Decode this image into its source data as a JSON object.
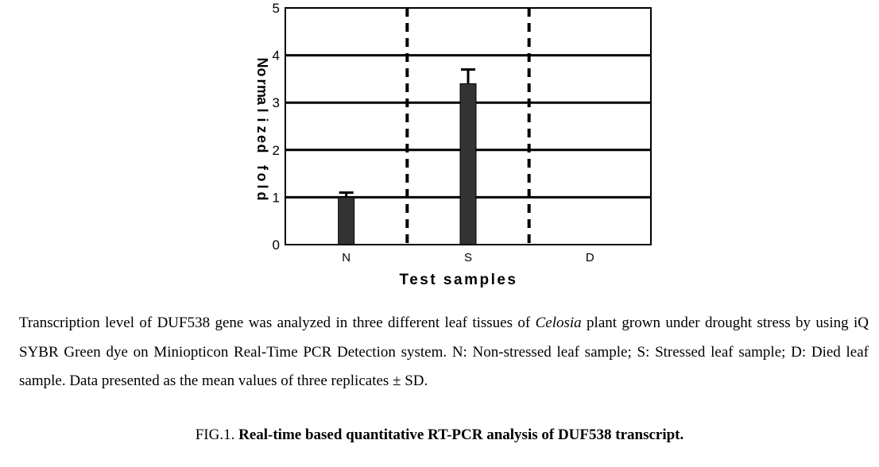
{
  "chart_data": {
    "type": "bar",
    "categories": [
      "N",
      "S",
      "D"
    ],
    "values": [
      1.0,
      3.4,
      0
    ],
    "error": [
      0.1,
      0.3,
      0
    ],
    "ylim": [
      0,
      5
    ],
    "yticks": [
      "0",
      "1",
      "2",
      "3",
      "4",
      "5"
    ],
    "ylabel_chars": [
      "N",
      "o",
      "r",
      "m",
      "a",
      "l",
      "i",
      "z",
      "e",
      "d",
      " ",
      "f",
      "o",
      "l",
      "d"
    ],
    "xlabel": "Test samples",
    "grid": true,
    "separators": "dashed",
    "bar_color": "#333333"
  },
  "caption": {
    "part1": "Transcription level of DUF538 gene was analyzed in three different leaf tissues of ",
    "species": "Celosia",
    "part2": " plant grown under drought stress by using iQ SYBR Green dye on Miniopticon Real-Time PCR Detection system. N: Non-stressed leaf sample; S: Stressed leaf sample; D: Died leaf sample. Data presented as the mean values of three replicates ± SD."
  },
  "figure": {
    "label": "FIG.1. ",
    "title": "Real-time based quantitative RT-PCR analysis of DUF538 transcript."
  }
}
